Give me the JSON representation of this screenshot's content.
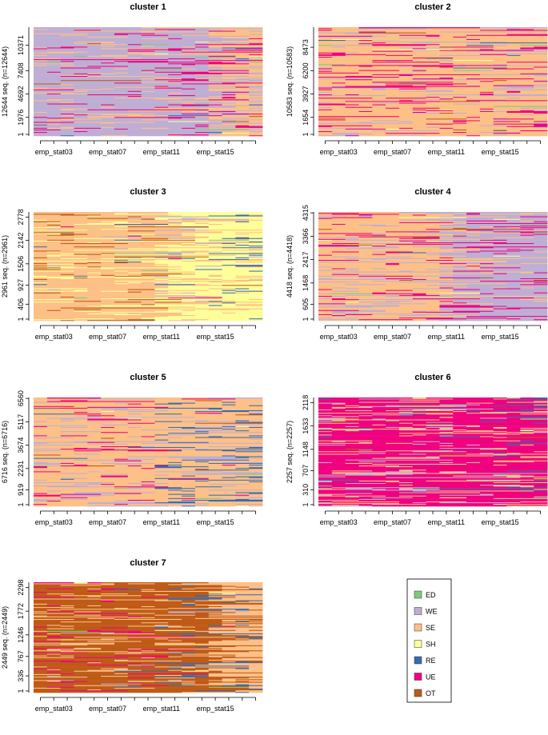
{
  "states": [
    {
      "code": "ED",
      "color": "#7fc97f"
    },
    {
      "code": "WE",
      "color": "#beaed4"
    },
    {
      "code": "SE",
      "color": "#fdc086"
    },
    {
      "code": "SH",
      "color": "#ffff99"
    },
    {
      "code": "RE",
      "color": "#386cb0"
    },
    {
      "code": "UE",
      "color": "#f0027f"
    },
    {
      "code": "OT",
      "color": "#bf5b17"
    }
  ],
  "x_tick_labels": [
    "emp_stat03",
    "emp_stat07",
    "emp_stat11",
    "emp_stat15"
  ],
  "n_periods": 17,
  "chart_data": [
    {
      "type": "heatmap",
      "title": "cluster 1",
      "ylabel": "12644 seq. (n=12644)",
      "yticks": [
        "1",
        "1976",
        "4692",
        "7408",
        "10371"
      ],
      "n": 12644,
      "dominant_by_phase": [
        [
          "WE",
          "SE",
          "UE"
        ],
        [
          "WE",
          "SE",
          "UE"
        ],
        [
          "WE",
          "UE",
          "SE"
        ],
        [
          "SE",
          "WE",
          "UE"
        ]
      ]
    },
    {
      "type": "heatmap",
      "title": "cluster 2",
      "ylabel": "10583 seq. (n=10583)",
      "yticks": [
        "1",
        "1654",
        "3927",
        "6200",
        "8473"
      ],
      "n": 10583,
      "dominant_by_phase": [
        [
          "SE",
          "UE",
          "WE"
        ],
        [
          "SE",
          "UE",
          "WE"
        ],
        [
          "SE",
          "UE",
          "WE"
        ],
        [
          "SE",
          "UE",
          "WE"
        ]
      ]
    },
    {
      "type": "heatmap",
      "title": "cluster 3",
      "ylabel": "2961 seq. (n=2961)",
      "yticks": [
        "1",
        "406",
        "927",
        "1506",
        "2142",
        "2778"
      ],
      "n": 2961,
      "dominant_by_phase": [
        [
          "SE",
          "SH",
          "OT"
        ],
        [
          "SE",
          "SH",
          "OT"
        ],
        [
          "SH",
          "SE",
          "WE"
        ],
        [
          "SH",
          "SE",
          "RE"
        ]
      ]
    },
    {
      "type": "heatmap",
      "title": "cluster 4",
      "ylabel": "4418 seq. (n=4418)",
      "yticks": [
        "1",
        "605",
        "1468",
        "2417",
        "3366",
        "4315"
      ],
      "n": 4418,
      "dominant_by_phase": [
        [
          "SE",
          "WE",
          "UE"
        ],
        [
          "SE",
          "WE",
          "UE"
        ],
        [
          "WE",
          "UE",
          "SE"
        ],
        [
          "WE",
          "UE",
          "SE"
        ]
      ]
    },
    {
      "type": "heatmap",
      "title": "cluster 5",
      "ylabel": "6716 seq. (n=6716)",
      "yticks": [
        "1",
        "919",
        "2231",
        "3674",
        "5117",
        "6560"
      ],
      "n": 6716,
      "dominant_by_phase": [
        [
          "SE",
          "WE",
          "UE"
        ],
        [
          "SE",
          "WE",
          "UE"
        ],
        [
          "SE",
          "RE",
          "WE"
        ],
        [
          "SE",
          "RE",
          "WE"
        ]
      ]
    },
    {
      "type": "heatmap",
      "title": "cluster 6",
      "ylabel": "2257 seq. (n=2257)",
      "yticks": [
        "1",
        "310",
        "707",
        "1148",
        "1633",
        "2118"
      ],
      "n": 2257,
      "dominant_by_phase": [
        [
          "UE",
          "SE",
          "WE"
        ],
        [
          "UE",
          "SE",
          "WE"
        ],
        [
          "UE",
          "SE",
          "WE"
        ],
        [
          "UE",
          "SE",
          "RE"
        ]
      ]
    },
    {
      "type": "heatmap",
      "title": "cluster 7",
      "ylabel": "2449 seq. (n=2449)",
      "yticks": [
        "1",
        "336",
        "767",
        "1246",
        "1772",
        "2298"
      ],
      "n": 2449,
      "dominant_by_phase": [
        [
          "OT",
          "SE",
          "UE"
        ],
        [
          "OT",
          "SE",
          "UE"
        ],
        [
          "OT",
          "SE",
          "RE"
        ],
        [
          "SE",
          "OT",
          "RE"
        ]
      ]
    }
  ]
}
